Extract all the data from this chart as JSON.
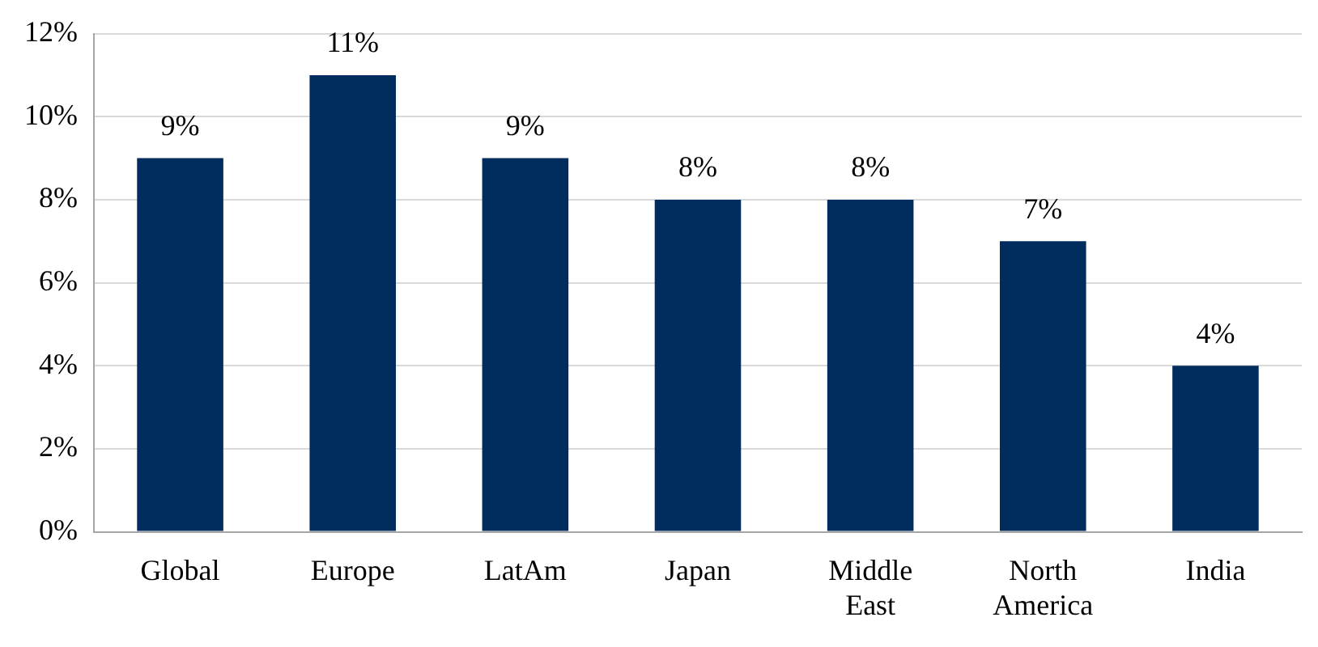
{
  "chart_data": {
    "type": "bar",
    "categories": [
      "Global",
      "Europe",
      "LatAm",
      "Japan",
      "Middle East",
      "North America",
      "India"
    ],
    "values": [
      9,
      11,
      9,
      8,
      8,
      7,
      4
    ],
    "color": "#002d5e",
    "value_labels": [
      "9%",
      "11%",
      "9%",
      "8%",
      "8%",
      "7%",
      "4%"
    ],
    "ylim": [
      0,
      12
    ],
    "yticks": [
      {
        "value": 0,
        "label": "0%"
      },
      {
        "value": 2,
        "label": "2%"
      },
      {
        "value": 4,
        "label": "4%"
      },
      {
        "value": 6,
        "label": "6%"
      },
      {
        "value": 8,
        "label": "8%"
      },
      {
        "value": 10,
        "label": "10%"
      },
      {
        "value": 12,
        "label": "12%"
      }
    ],
    "grid": "y",
    "legend": false
  }
}
